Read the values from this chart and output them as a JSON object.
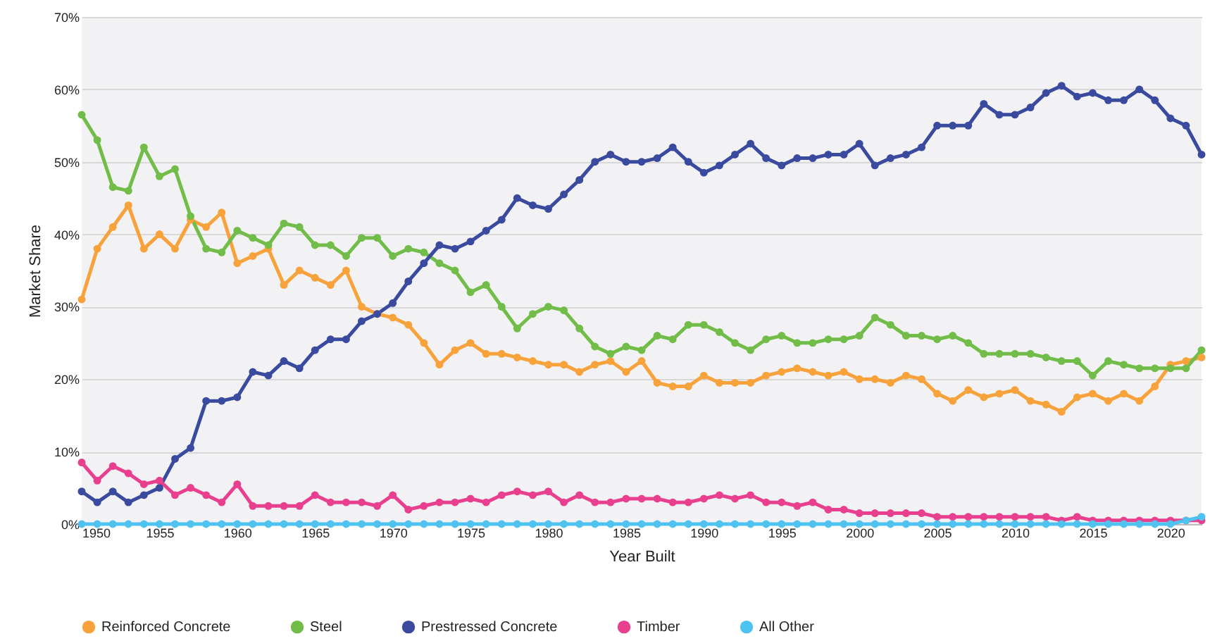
{
  "chart_data": {
    "type": "line",
    "xlabel": "Year Built",
    "ylabel": "Market Share",
    "x": [
      1950,
      1951,
      1952,
      1953,
      1954,
      1955,
      1956,
      1957,
      1958,
      1959,
      1960,
      1961,
      1962,
      1963,
      1964,
      1965,
      1966,
      1967,
      1968,
      1969,
      1970,
      1971,
      1972,
      1973,
      1974,
      1975,
      1976,
      1977,
      1978,
      1979,
      1980,
      1981,
      1982,
      1983,
      1984,
      1985,
      1986,
      1987,
      1988,
      1989,
      1990,
      1991,
      1992,
      1993,
      1994,
      1995,
      1996,
      1997,
      1998,
      1999,
      2000,
      2001,
      2002,
      2003,
      2004,
      2005,
      2006,
      2007,
      2008,
      2009,
      2010,
      2011,
      2012,
      2013,
      2014,
      2015,
      2016,
      2017,
      2018,
      2019,
      2020,
      2021,
      2022
    ],
    "series": [
      {
        "name": "Reinforced Concrete",
        "color": "#f7a23b",
        "values": [
          31,
          38,
          41,
          44,
          38,
          40,
          38,
          42,
          41,
          43,
          36,
          37,
          38,
          33,
          35,
          34,
          33,
          35,
          30,
          29,
          28.5,
          27.5,
          25,
          22,
          24,
          25,
          23.5,
          23.5,
          23,
          22.5,
          22,
          22,
          21,
          22,
          22.5,
          21,
          22.5,
          19.5,
          19,
          19,
          20.5,
          19.5,
          19.5,
          19.5,
          20.5,
          21,
          21.5,
          21,
          20.5,
          21,
          20,
          20,
          19.5,
          20.5,
          20,
          18,
          17,
          18.5,
          17.5,
          18,
          18.5,
          17,
          16.5,
          15.5,
          17.5,
          18,
          17,
          18,
          17,
          19,
          22,
          22.5,
          23
        ]
      },
      {
        "name": "Steel",
        "color": "#72bd4a",
        "values": [
          56.5,
          53,
          46.5,
          46,
          52,
          48,
          49,
          42.5,
          38,
          37.5,
          40.5,
          39.5,
          38.5,
          41.5,
          41,
          38.5,
          38.5,
          37,
          39.5,
          39.5,
          37,
          38,
          37.5,
          36,
          35,
          32,
          33,
          30,
          27,
          29,
          30,
          29.5,
          27,
          24.5,
          23.5,
          24.5,
          24,
          26,
          25.5,
          27.5,
          27.5,
          26.5,
          25,
          24,
          25.5,
          26,
          25,
          25,
          25.5,
          25.5,
          26,
          28.5,
          27.5,
          26,
          26,
          25.5,
          26,
          25,
          23.5,
          23.5,
          23.5,
          23.5,
          23,
          22.5,
          22.5,
          20.5,
          22.5,
          22,
          21.5,
          21.5,
          21.5,
          21.5,
          24
        ]
      },
      {
        "name": "Prestressed Concrete",
        "color": "#3a4a9e",
        "values": [
          4.5,
          3,
          4.5,
          3,
          4,
          5,
          9,
          10.5,
          17,
          17,
          17.5,
          21,
          20.5,
          22.5,
          21.5,
          24,
          25.5,
          25.5,
          28,
          29,
          30.5,
          33.5,
          36,
          38.5,
          38,
          39,
          40.5,
          42,
          45,
          44,
          43.5,
          45.5,
          47.5,
          50,
          51,
          50,
          50,
          50.5,
          52,
          50,
          48.5,
          49.5,
          51,
          52.5,
          50.5,
          49.5,
          50.5,
          50.5,
          51,
          51,
          52.5,
          49.5,
          50.5,
          51,
          52,
          55,
          55,
          55,
          58,
          56.5,
          56.5,
          57.5,
          59.5,
          60.5,
          59,
          59.5,
          58.5,
          58.5,
          60,
          58.5,
          56,
          55,
          51
        ]
      },
      {
        "name": "Timber",
        "color": "#e8408f",
        "values": [
          8.5,
          6,
          8,
          7,
          5.5,
          6,
          4,
          5,
          4,
          3,
          5.5,
          2.5,
          2.5,
          2.5,
          2.5,
          4,
          3,
          3,
          3,
          2.5,
          4,
          2,
          2.5,
          3,
          3,
          3.5,
          3,
          4,
          4.5,
          4,
          4.5,
          3,
          4,
          3,
          3,
          3.5,
          3.5,
          3.5,
          3,
          3,
          3.5,
          4,
          3.5,
          4,
          3,
          3,
          2.5,
          3,
          2,
          2,
          1.5,
          1.5,
          1.5,
          1.5,
          1.5,
          1,
          1,
          1,
          1,
          1,
          1,
          1,
          1,
          0.5,
          1,
          0.5,
          0.5,
          0.5,
          0.5,
          0.5,
          0.5,
          0.5,
          0.5
        ]
      },
      {
        "name": "All Other",
        "color": "#4fc3ef",
        "values": [
          0,
          0,
          0,
          0,
          0,
          0,
          0,
          0,
          0,
          0,
          0,
          0,
          0,
          0,
          0,
          0,
          0,
          0,
          0,
          0,
          0,
          0,
          0,
          0,
          0,
          0,
          0,
          0,
          0,
          0,
          0,
          0,
          0,
          0,
          0,
          0,
          0,
          0,
          0,
          0,
          0,
          0,
          0,
          0,
          0,
          0,
          0,
          0,
          0,
          0,
          0,
          0,
          0,
          0,
          0,
          0,
          0,
          0,
          0,
          0,
          0,
          0,
          0,
          0,
          0,
          0,
          0,
          0,
          0,
          0,
          0,
          0.5,
          1
        ]
      }
    ],
    "xlim": [
      1950,
      2022
    ],
    "xticks": [
      1950,
      1955,
      1960,
      1965,
      1970,
      1975,
      1980,
      1985,
      1990,
      1995,
      2000,
      2005,
      2010,
      2015,
      2020
    ],
    "ylim": [
      0,
      70
    ],
    "yticks": [
      {
        "value": 0,
        "label": "0%"
      },
      {
        "value": 10,
        "label": "10%"
      },
      {
        "value": 20,
        "label": "20%"
      },
      {
        "value": 30,
        "label": "30%"
      },
      {
        "value": 40,
        "label": "40%"
      },
      {
        "value": 50,
        "label": "50%"
      },
      {
        "value": 60,
        "label": "60%"
      },
      {
        "value": 70,
        "label": "70%"
      }
    ],
    "grid": "y",
    "legend": "bottom",
    "marker": "circle",
    "line_style": "solid"
  }
}
